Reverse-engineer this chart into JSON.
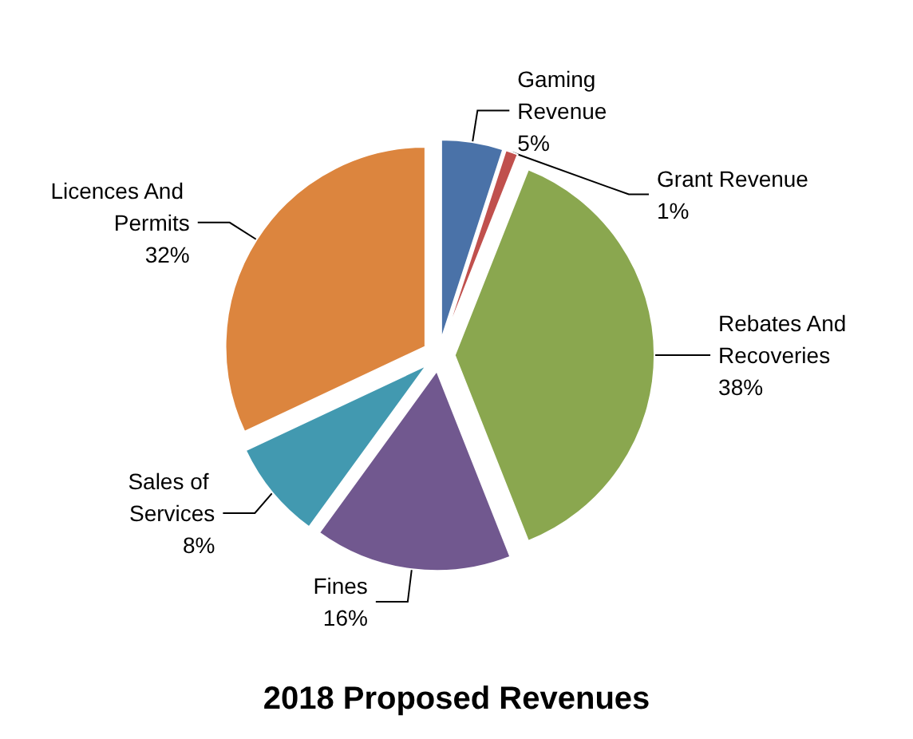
{
  "chart_data": {
    "type": "pie",
    "title": "2018 Proposed Revenues",
    "categories": [
      "Gaming Revenue",
      "Grant Revenue",
      "Rebates And Recoveries",
      "Fines",
      "Sales of Services",
      "Licences And Permits"
    ],
    "values": [
      5,
      1,
      38,
      16,
      8,
      32
    ],
    "value_labels": [
      "5%",
      "1%",
      "38%",
      "16%",
      "8%",
      "32%"
    ],
    "colors": [
      "#4a72a8",
      "#c0504d",
      "#8aa74f",
      "#71588f",
      "#4299b0",
      "#dc853e"
    ]
  }
}
